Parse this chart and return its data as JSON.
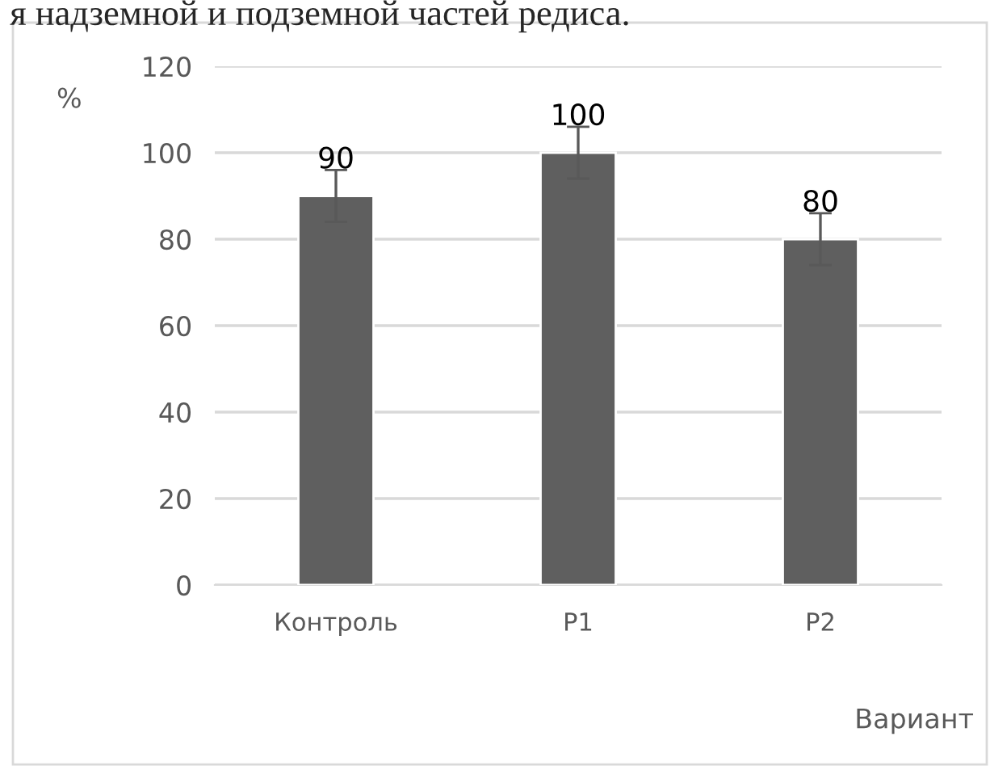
{
  "chart_data": {
    "type": "bar",
    "title": "я надземной и подземной частей редиса.",
    "ylabel": "%",
    "xlabel": "Вариант",
    "categories": [
      "Контроль",
      "P1",
      "P2"
    ],
    "values": [
      90,
      100,
      80
    ],
    "errors": [
      6,
      6,
      6
    ],
    "color": "#5f5f5f",
    "data_labels": true,
    "ylim": [
      0,
      120
    ],
    "yticks": [
      0,
      20,
      40,
      60,
      80,
      100,
      120
    ],
    "grid": "y"
  }
}
